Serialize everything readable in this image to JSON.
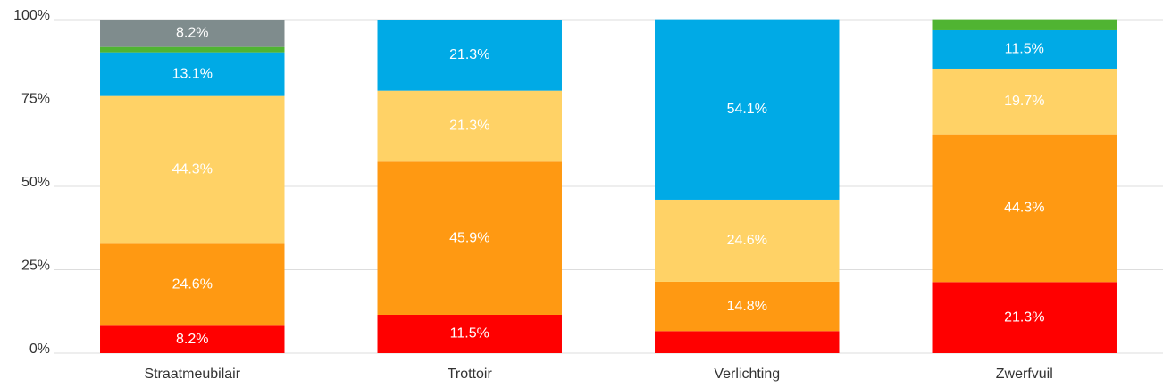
{
  "chart_data": {
    "type": "stacked_bar",
    "categories": [
      "Straatmeubilair",
      "Trottoir",
      "Verlichting",
      "Zwerfvuil"
    ],
    "series": [
      {
        "color": "#ff0000",
        "values": [
          8.2,
          11.5,
          6.6,
          21.3
        ],
        "value_labels": [
          "8.2%",
          "11.5%",
          null,
          "21.3%"
        ]
      },
      {
        "color": "#ff9912",
        "values": [
          24.6,
          45.9,
          14.8,
          44.3
        ],
        "value_labels": [
          "24.6%",
          "45.9%",
          "14.8%",
          "44.3%"
        ]
      },
      {
        "color": "#ffd266",
        "values": [
          44.3,
          21.3,
          24.6,
          19.7
        ],
        "value_labels": [
          "44.3%",
          "21.3%",
          "24.6%",
          "19.7%"
        ]
      },
      {
        "color": "#00aae6",
        "values": [
          13.1,
          21.3,
          54.1,
          11.5
        ],
        "value_labels": [
          "13.1%",
          "21.3%",
          "54.1%",
          "11.5%"
        ]
      },
      {
        "color": "#50b432",
        "values": [
          1.6,
          0,
          0,
          3.3
        ],
        "value_labels": [
          null,
          null,
          null,
          null
        ]
      },
      {
        "color": "#7f8c8d",
        "values": [
          8.2,
          0,
          0,
          0
        ],
        "value_labels": [
          "8.2%",
          null,
          null,
          null
        ]
      }
    ],
    "ylim": [
      0,
      100
    ],
    "yticks": [
      {
        "value": 0,
        "label": "0%"
      },
      {
        "value": 25,
        "label": "25%"
      },
      {
        "value": 50,
        "label": "50%"
      },
      {
        "value": 75,
        "label": "75%"
      },
      {
        "value": 100,
        "label": "100%"
      }
    ],
    "grid": true
  }
}
